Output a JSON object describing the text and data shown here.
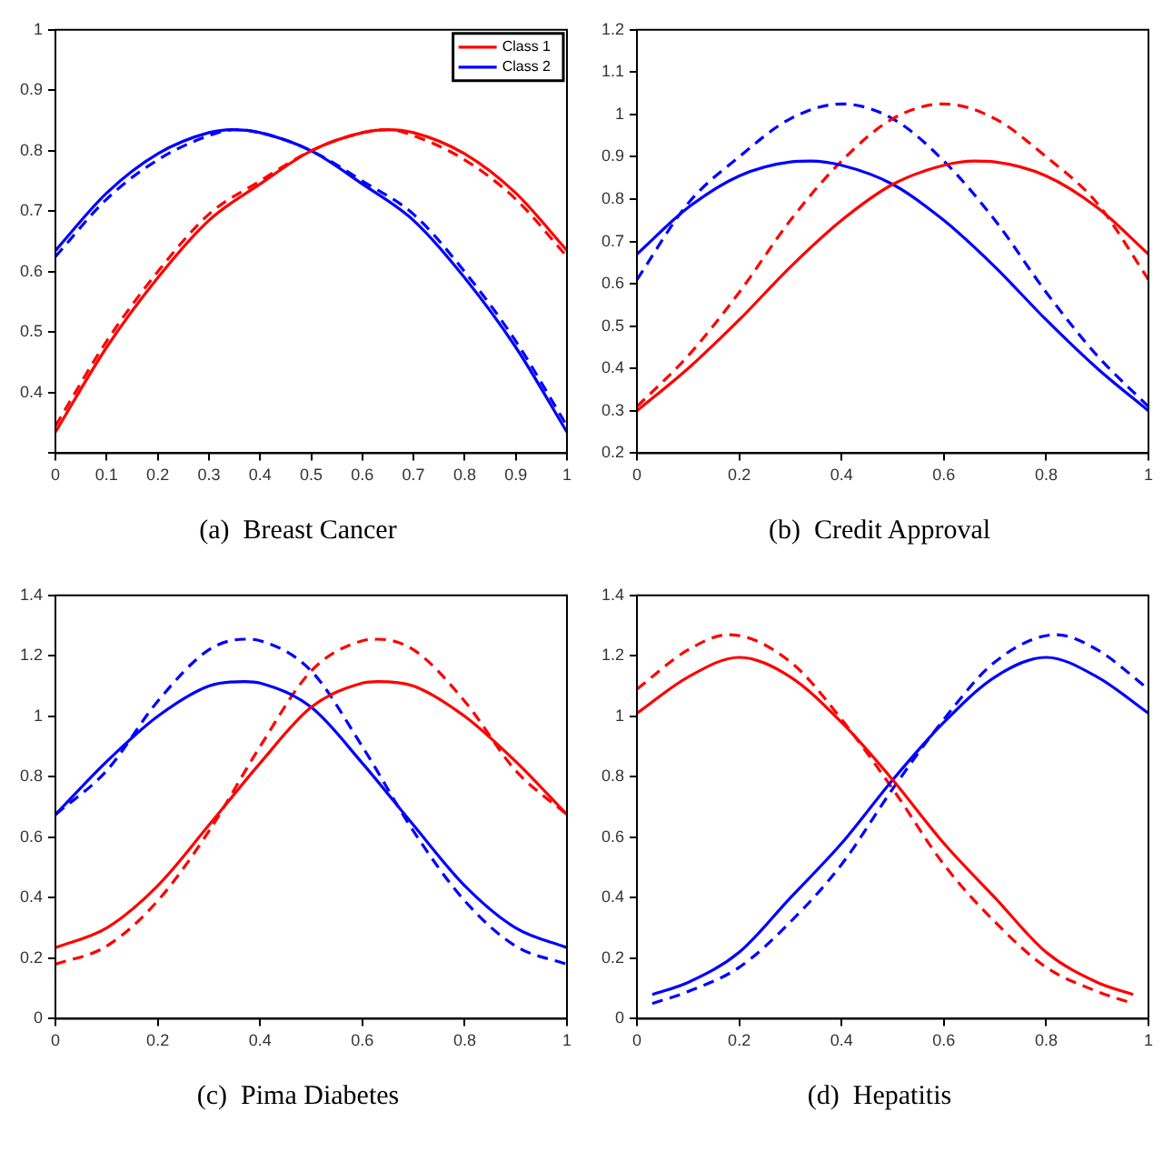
{
  "chart_data": [
    {
      "type": "line",
      "title": "(a)  Breast Cancer",
      "xlim": [
        0,
        1
      ],
      "ylim": [
        0.3,
        1
      ],
      "xticks": [
        0,
        0.1,
        0.2,
        0.3,
        0.4,
        0.5,
        0.6,
        0.7,
        0.8,
        0.9,
        1
      ],
      "yticks": [
        {
          "value": 0.3,
          "label": null
        },
        0.4,
        0.5,
        0.6,
        0.7,
        0.8,
        0.9,
        1
      ],
      "grid": false,
      "legend": "top right",
      "marker": "none",
      "series": [
        {
          "name": "Class 1",
          "color": "#ff0000",
          "line_style": "solid",
          "x": [
            0,
            0.1,
            0.2,
            0.3,
            0.4,
            0.5,
            0.6,
            0.65,
            0.7,
            0.8,
            0.9,
            1
          ],
          "values": [
            0.335,
            0.475,
            0.59,
            0.685,
            0.745,
            0.8,
            0.83,
            0.835,
            0.83,
            0.795,
            0.73,
            0.635
          ]
        },
        {
          "name": "Class 2",
          "color": "#0000ff",
          "line_style": "solid",
          "x": [
            0,
            0.1,
            0.2,
            0.3,
            0.35,
            0.4,
            0.5,
            0.6,
            0.7,
            0.8,
            0.9,
            1
          ],
          "values": [
            0.635,
            0.73,
            0.795,
            0.83,
            0.835,
            0.83,
            0.8,
            0.745,
            0.685,
            0.59,
            0.475,
            0.335
          ]
        },
        {
          "color": "#ff0000",
          "line_style": "dashed",
          "x": [
            0,
            0.1,
            0.2,
            0.3,
            0.4,
            0.5,
            0.6,
            0.65,
            0.7,
            0.8,
            0.9,
            1
          ],
          "values": [
            0.345,
            0.485,
            0.6,
            0.695,
            0.75,
            0.8,
            0.83,
            0.835,
            0.825,
            0.785,
            0.72,
            0.625
          ]
        },
        {
          "color": "#0000ff",
          "line_style": "dashed",
          "x": [
            0,
            0.1,
            0.2,
            0.3,
            0.35,
            0.4,
            0.5,
            0.6,
            0.7,
            0.8,
            0.9,
            1
          ],
          "values": [
            0.625,
            0.72,
            0.785,
            0.825,
            0.835,
            0.83,
            0.8,
            0.75,
            0.695,
            0.6,
            0.485,
            0.345
          ]
        }
      ]
    },
    {
      "type": "line",
      "title": "(b)  Credit Approval",
      "xlim": [
        0,
        1
      ],
      "ylim": [
        0.2,
        1.2
      ],
      "xticks": [
        0,
        0.2,
        0.4,
        0.6,
        0.8,
        1
      ],
      "yticks": [
        0.2,
        0.3,
        0.4,
        0.5,
        0.6,
        0.7,
        0.8,
        0.9,
        1,
        1.1,
        1.2
      ],
      "grid": false,
      "legend": false,
      "marker": "none",
      "series": [
        {
          "color": "#ff0000",
          "line_style": "solid",
          "x": [
            0,
            0.1,
            0.2,
            0.3,
            0.4,
            0.5,
            0.6,
            0.66,
            0.7,
            0.8,
            0.9,
            1
          ],
          "values": [
            0.3,
            0.4,
            0.515,
            0.64,
            0.75,
            0.835,
            0.88,
            0.89,
            0.888,
            0.855,
            0.78,
            0.67
          ]
        },
        {
          "color": "#0000ff",
          "line_style": "solid",
          "x": [
            0,
            0.1,
            0.2,
            0.3,
            0.34,
            0.4,
            0.5,
            0.6,
            0.7,
            0.8,
            0.9,
            1
          ],
          "values": [
            0.67,
            0.78,
            0.855,
            0.888,
            0.89,
            0.88,
            0.835,
            0.75,
            0.64,
            0.515,
            0.4,
            0.3
          ]
        },
        {
          "color": "#ff0000",
          "line_style": "dashed",
          "x": [
            0,
            0.1,
            0.2,
            0.3,
            0.4,
            0.5,
            0.6,
            0.7,
            0.8,
            0.9,
            1
          ],
          "values": [
            0.31,
            0.43,
            0.58,
            0.75,
            0.89,
            0.99,
            1.025,
            0.99,
            0.9,
            0.79,
            0.61
          ]
        },
        {
          "color": "#0000ff",
          "line_style": "dashed",
          "x": [
            0,
            0.1,
            0.2,
            0.3,
            0.4,
            0.5,
            0.6,
            0.7,
            0.8,
            0.9,
            1
          ],
          "values": [
            0.61,
            0.79,
            0.9,
            0.99,
            1.025,
            0.99,
            0.89,
            0.75,
            0.58,
            0.43,
            0.31
          ]
        }
      ]
    },
    {
      "type": "line",
      "title": "(c)  Pima Diabetes",
      "xlim": [
        0,
        1
      ],
      "ylim": [
        0,
        1.4
      ],
      "xticks": [
        0,
        0.2,
        0.4,
        0.6,
        0.8,
        1
      ],
      "yticks": [
        0,
        0.2,
        0.4,
        0.6,
        0.8,
        1,
        1.2,
        1.4
      ],
      "grid": false,
      "legend": false,
      "marker": "none",
      "series": [
        {
          "color": "#ff0000",
          "line_style": "solid",
          "x": [
            0,
            0.1,
            0.2,
            0.3,
            0.4,
            0.5,
            0.6,
            0.63,
            0.7,
            0.8,
            0.9,
            1
          ],
          "values": [
            0.235,
            0.3,
            0.44,
            0.64,
            0.845,
            1.03,
            1.11,
            1.115,
            1.1,
            1.0,
            0.85,
            0.675
          ]
        },
        {
          "color": "#0000ff",
          "line_style": "solid",
          "x": [
            0,
            0.1,
            0.2,
            0.3,
            0.37,
            0.4,
            0.5,
            0.6,
            0.7,
            0.8,
            0.9,
            1
          ],
          "values": [
            0.675,
            0.85,
            1.0,
            1.1,
            1.115,
            1.11,
            1.03,
            0.845,
            0.64,
            0.44,
            0.3,
            0.235
          ]
        },
        {
          "color": "#ff0000",
          "line_style": "dashed",
          "x": [
            0,
            0.1,
            0.2,
            0.3,
            0.4,
            0.5,
            0.6,
            0.63,
            0.7,
            0.8,
            0.9,
            1
          ],
          "values": [
            0.18,
            0.24,
            0.39,
            0.62,
            0.9,
            1.15,
            1.25,
            1.255,
            1.22,
            1.05,
            0.82,
            0.675
          ]
        },
        {
          "color": "#0000ff",
          "line_style": "dashed",
          "x": [
            0,
            0.1,
            0.2,
            0.3,
            0.37,
            0.4,
            0.5,
            0.6,
            0.7,
            0.8,
            0.9,
            1
          ],
          "values": [
            0.675,
            0.82,
            1.05,
            1.22,
            1.255,
            1.25,
            1.15,
            0.9,
            0.62,
            0.39,
            0.24,
            0.18
          ]
        }
      ]
    },
    {
      "type": "line",
      "title": "(d)  Hepatitis",
      "xlim": [
        0,
        1
      ],
      "ylim": [
        0,
        1.4
      ],
      "xticks": [
        0,
        0.2,
        0.4,
        0.6,
        0.8,
        1
      ],
      "yticks": [
        0,
        0.2,
        0.4,
        0.6,
        0.8,
        1,
        1.2,
        1.4
      ],
      "grid": false,
      "legend": false,
      "marker": "none",
      "series": [
        {
          "color": "#ff0000",
          "line_style": "solid",
          "x": [
            0,
            0.1,
            0.2,
            0.3,
            0.4,
            0.5,
            0.6,
            0.7,
            0.8,
            0.9,
            0.97
          ],
          "values": [
            1.01,
            1.13,
            1.195,
            1.13,
            0.98,
            0.79,
            0.58,
            0.4,
            0.22,
            0.12,
            0.08
          ]
        },
        {
          "color": "#0000ff",
          "line_style": "solid",
          "x": [
            0.03,
            0.1,
            0.2,
            0.3,
            0.4,
            0.5,
            0.6,
            0.7,
            0.8,
            0.9,
            1
          ],
          "values": [
            0.08,
            0.12,
            0.22,
            0.4,
            0.58,
            0.79,
            0.98,
            1.13,
            1.195,
            1.13,
            1.01
          ]
        },
        {
          "color": "#ff0000",
          "line_style": "dashed",
          "x": [
            0,
            0.1,
            0.18,
            0.3,
            0.4,
            0.5,
            0.6,
            0.7,
            0.8,
            0.9,
            0.97
          ],
          "values": [
            1.09,
            1.22,
            1.27,
            1.18,
            0.99,
            0.76,
            0.51,
            0.32,
            0.17,
            0.09,
            0.05
          ]
        },
        {
          "color": "#0000ff",
          "line_style": "dashed",
          "x": [
            0.03,
            0.1,
            0.2,
            0.3,
            0.4,
            0.5,
            0.6,
            0.7,
            0.82,
            0.9,
            1
          ],
          "values": [
            0.05,
            0.09,
            0.17,
            0.32,
            0.51,
            0.76,
            0.99,
            1.18,
            1.27,
            1.22,
            1.09
          ]
        }
      ]
    }
  ]
}
